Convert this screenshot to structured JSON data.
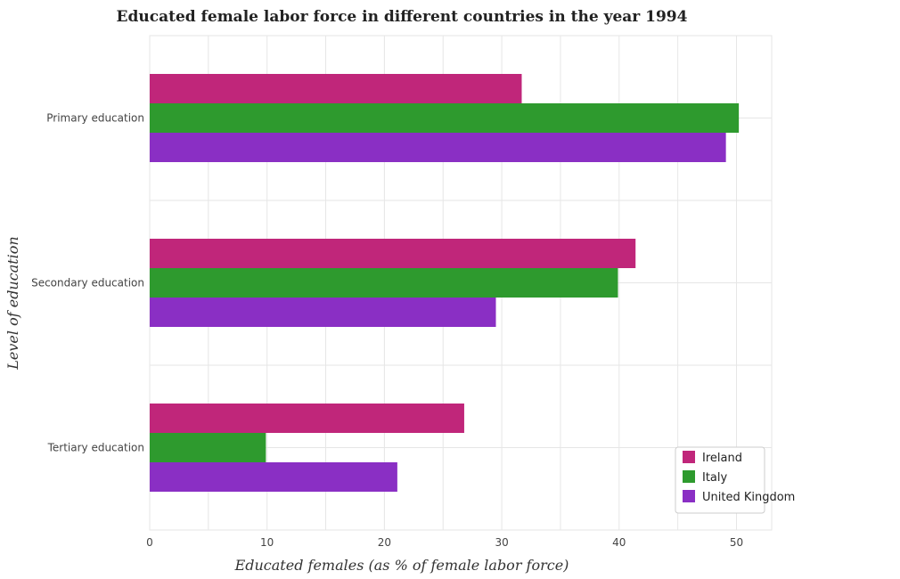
{
  "chart_data": {
    "type": "bar",
    "orientation": "horizontal",
    "title": "Educated female labor force in different countries in the year 1994",
    "xlabel": "Educated females (as % of female labor force)",
    "ylabel": "Level of education",
    "categories": [
      "Primary education",
      "Secondary education",
      "Tertiary education"
    ],
    "xlim": [
      0,
      53
    ],
    "xticks": [
      0,
      10,
      20,
      30,
      40,
      50
    ],
    "grid": true,
    "legend_position": "bottom-right",
    "series": [
      {
        "name": "Ireland",
        "color": "#c0267a",
        "values": [
          31.7,
          41.4,
          26.8
        ]
      },
      {
        "name": "Italy",
        "color": "#2e9a2e",
        "values": [
          50.2,
          39.9,
          9.9
        ]
      },
      {
        "name": "United Kingdom",
        "color": "#8a2fc4",
        "values": [
          49.1,
          29.5,
          21.1
        ]
      }
    ]
  }
}
